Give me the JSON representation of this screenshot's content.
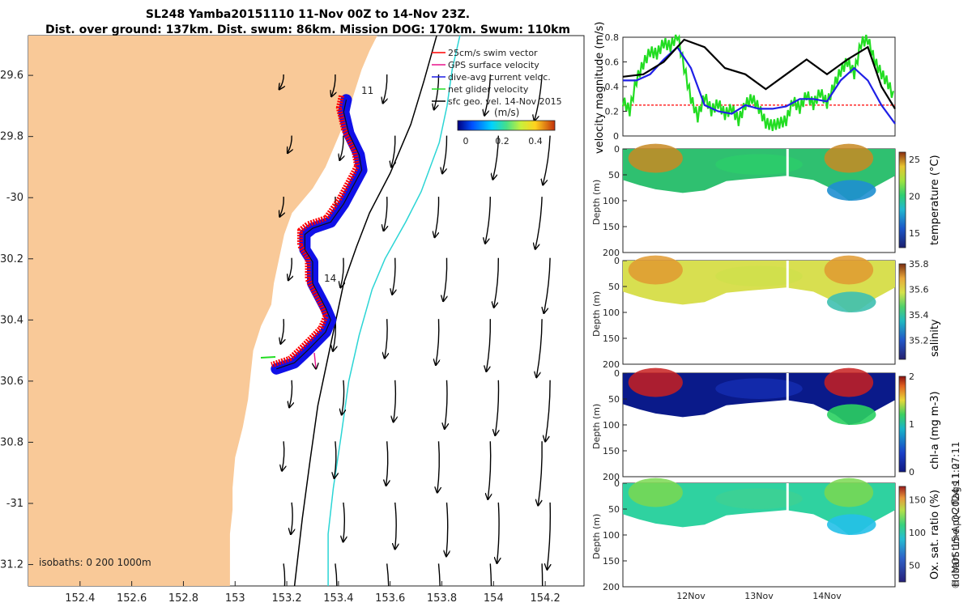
{
  "title": {
    "line1": "SL248 Yamba20151110 11-Nov 00Z to 14-Nov 23Z.",
    "line2": "Dist. over ground: 137km. Dist. swum: 86km. Mission DOG: 170km. Swum: 110km"
  },
  "colors": {
    "land": "#f9c998",
    "gps": "#e8148c",
    "swim": "#ff0000",
    "current": "#1f1fe6",
    "net": "#22dd22",
    "contour_200": "#000000",
    "contour_1000": "#2bd5d5",
    "track_fill": "#1010e8"
  },
  "chart_data": [
    {
      "type": "map",
      "name": "glider-track-map",
      "xlabel": "",
      "ylabel": "",
      "xlim": [
        152.2,
        154.35
      ],
      "ylim": [
        -31.27,
        -29.47
      ],
      "xticks": [
        152.4,
        152.6,
        152.8,
        153,
        153.2,
        153.4,
        153.6,
        153.8,
        154,
        154.2
      ],
      "xtick_labels": [
        "152.4",
        "152.6",
        "152.8",
        "153",
        "153.2",
        "153.4",
        "153.6",
        "153.8",
        "154",
        "154.2"
      ],
      "yticks": [
        -29.6,
        -29.8,
        -30,
        -30.2,
        -30.4,
        -30.6,
        -30.8,
        -31,
        -31.2
      ],
      "ytick_labels": [
        "29.6",
        "29.8",
        "-30",
        "30.2",
        "30.4",
        "30.6",
        "30.8",
        "-31",
        "31.2"
      ],
      "legend": [
        "25cm/s swim vector",
        "GPS surface velocity",
        "dive-avg current veloc.",
        "net glider velocity",
        "sfc geo. vel. 14-Nov 2015"
      ],
      "legend_position": "top-right",
      "colorbar": {
        "label": "(m/s)",
        "ticks": [
          0,
          0.2,
          0.4
        ],
        "tick_labels": [
          "0",
          "0.2",
          "0.4"
        ],
        "range": [
          0,
          0.5
        ]
      },
      "day_labels": [
        "11",
        "14"
      ],
      "isobath_label": "isobaths: 0   200  1000m",
      "glider_track": [
        [
          153.43,
          -29.68
        ],
        [
          153.42,
          -29.72
        ],
        [
          153.44,
          -29.79
        ],
        [
          153.48,
          -29.86
        ],
        [
          153.49,
          -29.91
        ],
        [
          153.42,
          -30.02
        ],
        [
          153.37,
          -30.08
        ],
        [
          153.3,
          -30.1
        ],
        [
          153.27,
          -30.12
        ],
        [
          153.27,
          -30.17
        ],
        [
          153.3,
          -30.21
        ],
        [
          153.3,
          -30.28
        ],
        [
          153.35,
          -30.36
        ],
        [
          153.37,
          -30.4
        ],
        [
          153.35,
          -30.44
        ],
        [
          153.28,
          -30.5
        ],
        [
          153.23,
          -30.54
        ],
        [
          153.16,
          -30.56
        ]
      ],
      "coastline": [
        [
          153.55,
          -29.47
        ],
        [
          153.52,
          -29.52
        ],
        [
          153.49,
          -29.58
        ],
        [
          153.46,
          -29.66
        ],
        [
          153.43,
          -29.74
        ],
        [
          153.39,
          -29.82
        ],
        [
          153.35,
          -29.9
        ],
        [
          153.3,
          -29.97
        ],
        [
          153.22,
          -30.05
        ],
        [
          153.19,
          -30.12
        ],
        [
          153.17,
          -30.2
        ],
        [
          153.15,
          -30.28
        ],
        [
          153.14,
          -30.35
        ],
        [
          153.1,
          -30.42
        ],
        [
          153.07,
          -30.5
        ],
        [
          153.06,
          -30.58
        ],
        [
          153.05,
          -30.66
        ],
        [
          153.03,
          -30.75
        ],
        [
          153.0,
          -30.85
        ],
        [
          152.99,
          -30.95
        ],
        [
          152.99,
          -31.02
        ],
        [
          152.98,
          -31.1
        ],
        [
          152.98,
          -31.2
        ],
        [
          152.98,
          -31.27
        ]
      ],
      "isobath_200m": [
        [
          153.78,
          -29.47
        ],
        [
          153.73,
          -29.62
        ],
        [
          153.68,
          -29.76
        ],
        [
          153.6,
          -29.92
        ],
        [
          153.52,
          -30.05
        ],
        [
          153.47,
          -30.16
        ],
        [
          153.42,
          -30.28
        ],
        [
          153.39,
          -30.4
        ],
        [
          153.36,
          -30.52
        ],
        [
          153.32,
          -30.68
        ],
        [
          153.29,
          -30.86
        ],
        [
          153.26,
          -31.05
        ],
        [
          153.23,
          -31.27
        ]
      ],
      "isobath_1000m": [
        [
          153.87,
          -29.47
        ],
        [
          153.84,
          -29.58
        ],
        [
          153.82,
          -29.7
        ],
        [
          153.79,
          -29.82
        ],
        [
          153.72,
          -29.98
        ],
        [
          153.66,
          -30.08
        ],
        [
          153.58,
          -30.2
        ],
        [
          153.53,
          -30.3
        ],
        [
          153.48,
          -30.45
        ],
        [
          153.44,
          -30.6
        ],
        [
          153.41,
          -30.78
        ],
        [
          153.38,
          -30.95
        ],
        [
          153.36,
          -31.1
        ],
        [
          153.36,
          -31.27
        ]
      ],
      "velocity_field_grid": {
        "lon": [
          153.2,
          153.4,
          153.6,
          153.8,
          154.0,
          154.2
        ],
        "lat": [
          -29.65,
          -29.85,
          -30.05,
          -30.25,
          -30.45,
          -30.65,
          -30.85,
          -31.05,
          -31.25
        ]
      }
    },
    {
      "type": "line",
      "name": "velocity-magnitude",
      "ylabel": "velocity magnitude (m/s)",
      "xlim": [
        0,
        4
      ],
      "ylim": [
        0,
        0.8
      ],
      "yticks": [
        0,
        0.2,
        0.4,
        0.6,
        0.8
      ],
      "series": [
        {
          "name": "swim",
          "color": "#ff0000",
          "x": [
            0,
            4
          ],
          "values": [
            0.25,
            0.25
          ]
        },
        {
          "name": "net",
          "color": "#22dd22",
          "x": [
            0,
            0.1,
            0.2,
            0.3,
            0.4,
            0.5,
            0.6,
            0.7,
            0.8,
            0.9,
            1.0,
            1.1,
            1.2,
            1.3,
            1.4,
            1.5,
            1.6,
            1.7,
            1.8,
            1.9,
            2.0,
            2.1,
            2.2,
            2.3,
            2.4,
            2.5,
            2.6,
            2.7,
            2.8,
            2.9,
            3.0,
            3.1,
            3.2,
            3.3,
            3.4,
            3.5,
            3.6,
            3.7,
            3.8,
            3.9,
            4.0
          ],
          "values": [
            0.28,
            0.2,
            0.45,
            0.58,
            0.68,
            0.66,
            0.75,
            0.72,
            0.82,
            0.55,
            0.3,
            0.15,
            0.32,
            0.2,
            0.26,
            0.17,
            0.22,
            0.12,
            0.25,
            0.3,
            0.22,
            0.1,
            0.08,
            0.1,
            0.12,
            0.28,
            0.22,
            0.33,
            0.25,
            0.35,
            0.26,
            0.4,
            0.52,
            0.6,
            0.5,
            0.75,
            0.78,
            0.6,
            0.5,
            0.42,
            0.28
          ]
        },
        {
          "name": "current",
          "color": "#1f1fe6",
          "x": [
            0,
            0.2,
            0.4,
            0.6,
            0.8,
            1.0,
            1.2,
            1.4,
            1.6,
            1.8,
            2.0,
            2.2,
            2.4,
            2.6,
            2.8,
            3.0,
            3.2,
            3.4,
            3.6,
            3.8,
            4.0
          ],
          "values": [
            0.45,
            0.45,
            0.5,
            0.62,
            0.72,
            0.55,
            0.25,
            0.2,
            0.18,
            0.25,
            0.22,
            0.22,
            0.24,
            0.3,
            0.3,
            0.28,
            0.45,
            0.55,
            0.45,
            0.25,
            0.1
          ]
        },
        {
          "name": "dog",
          "color": "#000000",
          "x": [
            0,
            0.3,
            0.6,
            0.9,
            1.2,
            1.5,
            1.8,
            2.1,
            2.4,
            2.7,
            3.0,
            3.3,
            3.6,
            3.8,
            4.0
          ],
          "values": [
            0.48,
            0.5,
            0.6,
            0.78,
            0.72,
            0.55,
            0.5,
            0.38,
            0.5,
            0.62,
            0.5,
            0.62,
            0.72,
            0.4,
            0.22
          ]
        }
      ]
    },
    {
      "type": "heatmap",
      "name": "temperature-section",
      "ylabel": "Depth (m)",
      "yticks": [
        0,
        50,
        100,
        150,
        200
      ],
      "ylim": [
        0,
        200
      ],
      "colorbar_label": "temperature (°C)",
      "cticks": [
        15,
        20,
        25
      ],
      "clim": [
        13,
        26
      ]
    },
    {
      "type": "heatmap",
      "name": "salinity-section",
      "ylabel": "Depth (m)",
      "yticks": [
        0,
        50,
        100,
        150,
        200
      ],
      "ylim": [
        0,
        200
      ],
      "colorbar_label": "salinity",
      "cticks": [
        35.2,
        35.4,
        35.6,
        35.8
      ],
      "clim": [
        35.05,
        35.8
      ]
    },
    {
      "type": "heatmap",
      "name": "chl-section",
      "ylabel": "Depth (m)",
      "yticks": [
        0,
        50,
        100,
        150,
        200
      ],
      "ylim": [
        0,
        200
      ],
      "colorbar_label": "chl-a (mg m-3)",
      "cticks": [
        0,
        1,
        2
      ],
      "clim": [
        0,
        2
      ]
    },
    {
      "type": "heatmap",
      "name": "oxygen-section",
      "ylabel": "Depth (m)",
      "yticks": [
        0,
        50,
        100,
        150,
        200
      ],
      "ylim": [
        0,
        200
      ],
      "colorbar_label": "Ox. sat. ratio (%)",
      "cticks": [
        50,
        100,
        150
      ],
      "clim": [
        25,
        170
      ],
      "xtick_labels": [
        "12Nov",
        "13Nov",
        "14Nov"
      ]
    }
  ],
  "footer": {
    "qc": "Hobart time. QC flags 1  2",
    "credit": "© IMOS 15-Apr-2024 11:07:11"
  }
}
